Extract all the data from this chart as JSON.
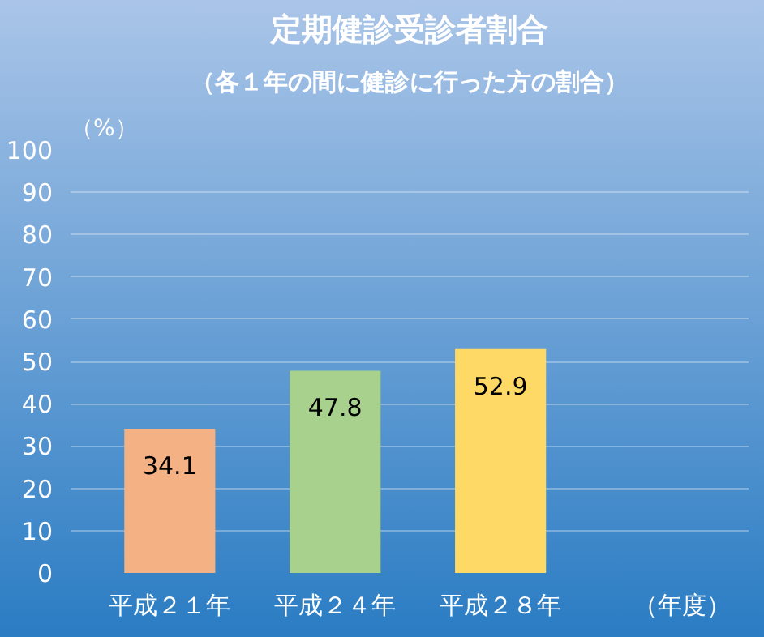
{
  "chart_data": {
    "type": "bar",
    "title": "定期健診受診者割合",
    "subtitle": "（各１年の間に健診に行った方の割合）",
    "xlabel": "（年度）",
    "ylabel": "（%）",
    "categories": [
      "平成２１年",
      "平成２４年",
      "平成２８年"
    ],
    "values": [
      34.1,
      47.8,
      52.9
    ],
    "colors": [
      "#f4b183",
      "#a9d18e",
      "#ffd966"
    ],
    "ylim": [
      0,
      100
    ],
    "yticks": [
      0,
      10,
      20,
      30,
      40,
      50,
      60,
      70,
      80,
      90,
      100
    ],
    "grid": "y",
    "data_labels": true
  }
}
